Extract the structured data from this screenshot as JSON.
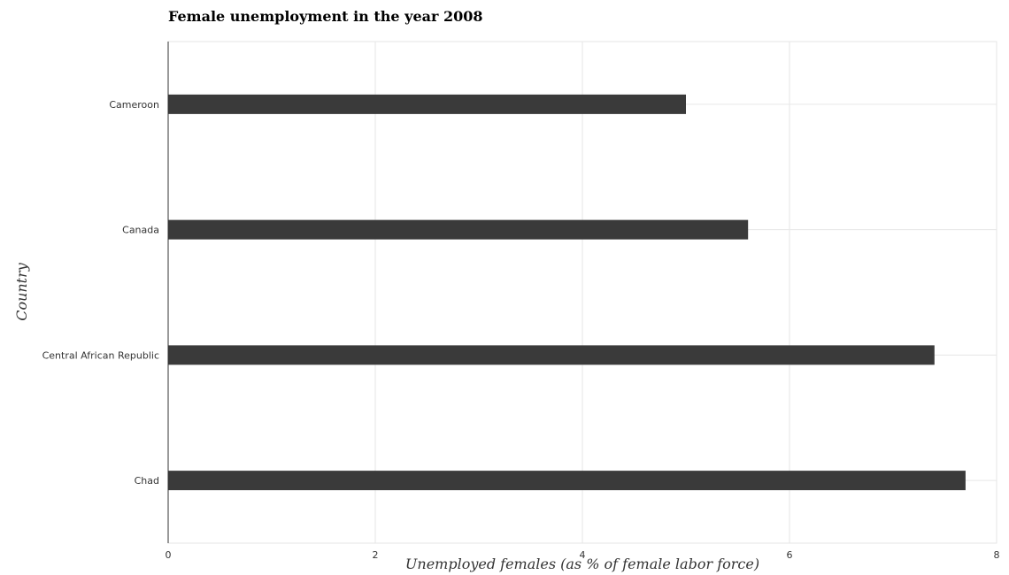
{
  "chart_data": {
    "type": "bar",
    "orientation": "horizontal",
    "title": "Female unemployment in the year 2008",
    "xlabel": "Unemployed females (as % of female labor force)",
    "ylabel": "Country",
    "categories": [
      "Cameroon",
      "Canada",
      "Central African Republic",
      "Chad"
    ],
    "values": [
      5.0,
      5.6,
      7.4,
      7.7
    ],
    "xlim": [
      0,
      8
    ],
    "xticks": [
      "0",
      "2",
      "4",
      "6",
      "8"
    ],
    "grid": true,
    "bar_color": "#3a3a3a"
  }
}
